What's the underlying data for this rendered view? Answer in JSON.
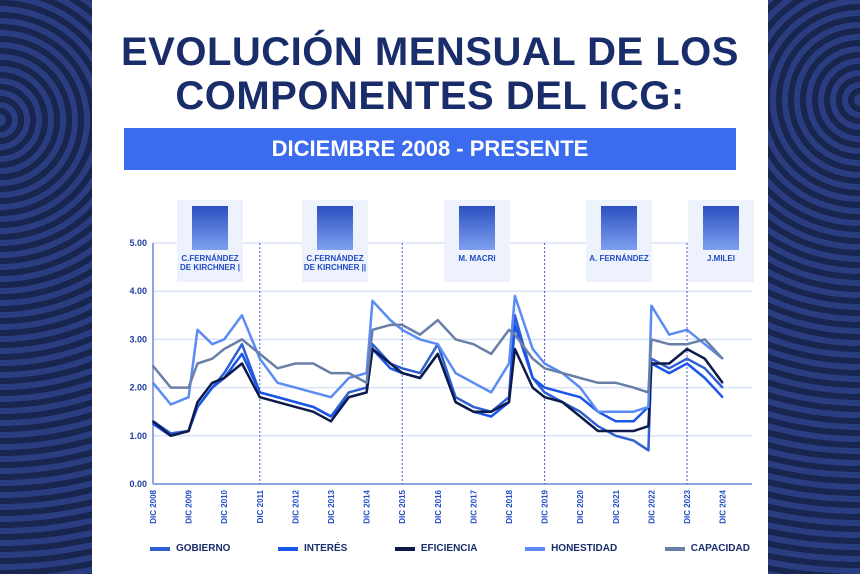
{
  "title": [
    "EVOLUCIÓN MENSUAL DE LOS",
    "COMPONENTES  DEL ICG:"
  ],
  "subtitle": "DICIEMBRE 2008 - PRESENTE",
  "presidents": [
    {
      "name": [
        "C.FERNÁNDEZ",
        "DE KIRCHNER |"
      ],
      "start": "2008-12"
    },
    {
      "name": [
        "C.FERNÁNDEZ",
        "DE KIRCHNER ||"
      ],
      "start": "2011-12"
    },
    {
      "name": [
        "M. MACRI",
        ""
      ],
      "start": "2015-12"
    },
    {
      "name": [
        "A. FERNÁNDEZ",
        ""
      ],
      "start": "2019-12"
    },
    {
      "name": [
        "J.MILEI",
        ""
      ],
      "start": "2023-12"
    }
  ],
  "chart_data": {
    "type": "line",
    "ylim": [
      0,
      5
    ],
    "yticks": [
      "0.00",
      "1.00",
      "2.00",
      "3.00",
      "4.00",
      "5.00"
    ],
    "xticks": [
      "DIC 2008",
      "DIC 2009",
      "DIC 2010",
      "DIC 2011",
      "DIC 2012",
      "DIC 2013",
      "DIC 2014",
      "DIC 2015",
      "DIC 2016",
      "DIC 2017",
      "DIC 2018",
      "DIC 2019",
      "DIC 2020",
      "DIC 2021",
      "DIC 2022",
      "DIC 2023",
      "DIC 2024"
    ],
    "xlim": [
      "2008-12",
      "2025-03"
    ],
    "grid": true,
    "legend_position": "bottom",
    "x": [
      "2008-12",
      "2009-06",
      "2009-12",
      "2010-03",
      "2010-08",
      "2010-12",
      "2011-06",
      "2011-12",
      "2012-06",
      "2012-12",
      "2013-06",
      "2013-12",
      "2014-06",
      "2014-12",
      "2015-02",
      "2015-08",
      "2015-12",
      "2016-06",
      "2016-12",
      "2017-06",
      "2017-12",
      "2018-06",
      "2018-12",
      "2019-02",
      "2019-08",
      "2019-12",
      "2020-06",
      "2020-12",
      "2021-06",
      "2021-12",
      "2022-06",
      "2022-11",
      "2022-12",
      "2023-06",
      "2023-12",
      "2024-06",
      "2024-12"
    ],
    "series": [
      {
        "name": "GOBIERNO",
        "color": "#2f5fd0",
        "values": [
          1.3,
          1.05,
          1.1,
          1.6,
          2.0,
          2.3,
          2.9,
          1.9,
          1.8,
          1.7,
          1.6,
          1.4,
          1.9,
          2.0,
          2.9,
          2.5,
          2.4,
          2.3,
          2.9,
          1.8,
          1.6,
          1.5,
          1.8,
          3.5,
          2.2,
          1.9,
          1.7,
          1.5,
          1.2,
          1.0,
          0.9,
          0.7,
          2.6,
          2.4,
          2.6,
          2.4,
          2.0
        ]
      },
      {
        "name": "INTERÉS",
        "color": "#1a55e8",
        "values": [
          1.25,
          1.0,
          1.1,
          1.6,
          2.0,
          2.2,
          2.7,
          1.9,
          1.8,
          1.7,
          1.6,
          1.4,
          1.8,
          1.9,
          2.8,
          2.4,
          2.3,
          2.2,
          2.7,
          1.7,
          1.5,
          1.4,
          1.7,
          3.3,
          2.2,
          2.0,
          1.9,
          1.8,
          1.5,
          1.3,
          1.3,
          1.6,
          2.5,
          2.3,
          2.5,
          2.2,
          1.8
        ]
      },
      {
        "name": "EFICIENCIA",
        "color": "#0d1a4a",
        "values": [
          1.3,
          1.0,
          1.1,
          1.7,
          2.1,
          2.2,
          2.5,
          1.8,
          1.7,
          1.6,
          1.5,
          1.3,
          1.8,
          1.9,
          2.8,
          2.5,
          2.3,
          2.2,
          2.7,
          1.7,
          1.5,
          1.5,
          1.7,
          2.8,
          2.0,
          1.8,
          1.7,
          1.4,
          1.1,
          1.1,
          1.1,
          1.2,
          2.5,
          2.5,
          2.8,
          2.6,
          2.1
        ]
      },
      {
        "name": "HONESTIDAD",
        "color": "#5b8cf5",
        "values": [
          2.1,
          1.65,
          1.8,
          3.2,
          2.9,
          3.0,
          3.5,
          2.6,
          2.1,
          2.0,
          1.9,
          1.8,
          2.2,
          2.3,
          3.8,
          3.4,
          3.2,
          3.0,
          2.9,
          2.3,
          2.1,
          1.9,
          2.5,
          3.9,
          2.8,
          2.5,
          2.3,
          2.0,
          1.5,
          1.5,
          1.5,
          1.6,
          3.7,
          3.1,
          3.2,
          2.9,
          2.6
        ]
      },
      {
        "name": "CAPACIDAD",
        "color": "#6a7fa8",
        "values": [
          2.45,
          2.0,
          2.0,
          2.5,
          2.6,
          2.8,
          3.0,
          2.7,
          2.4,
          2.5,
          2.5,
          2.3,
          2.3,
          2.1,
          3.2,
          3.3,
          3.3,
          3.1,
          3.4,
          3.0,
          2.9,
          2.7,
          3.2,
          3.1,
          2.6,
          2.4,
          2.3,
          2.2,
          2.1,
          2.1,
          2.0,
          1.9,
          3.0,
          2.9,
          2.9,
          3.0,
          2.6
        ]
      }
    ]
  }
}
